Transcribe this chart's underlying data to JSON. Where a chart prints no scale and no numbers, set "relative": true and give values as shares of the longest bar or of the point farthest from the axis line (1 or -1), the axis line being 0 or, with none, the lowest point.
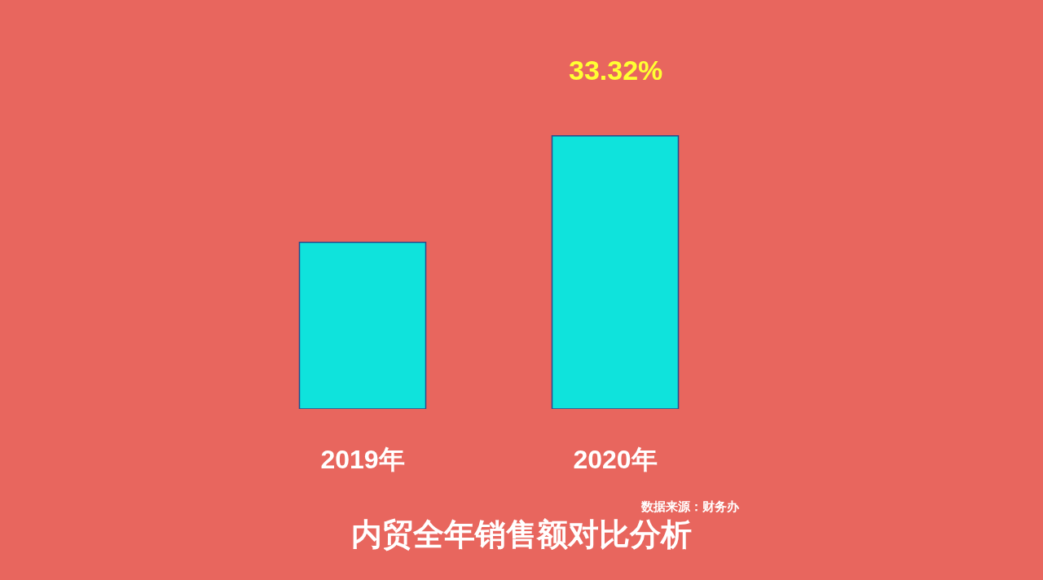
{
  "chart_data": {
    "type": "bar",
    "title": "内贸全年销售额对比分析",
    "relative": true,
    "categories": [
      "2019年",
      "2020年"
    ],
    "values": [
      0.61,
      1
    ],
    "color": "#0fe3dc",
    "annotations": [
      {
        "text": "33.32%",
        "x": "2020年",
        "y": 1
      },
      "数据来源：财务办"
    ],
    "grid": false,
    "legend": false
  }
}
